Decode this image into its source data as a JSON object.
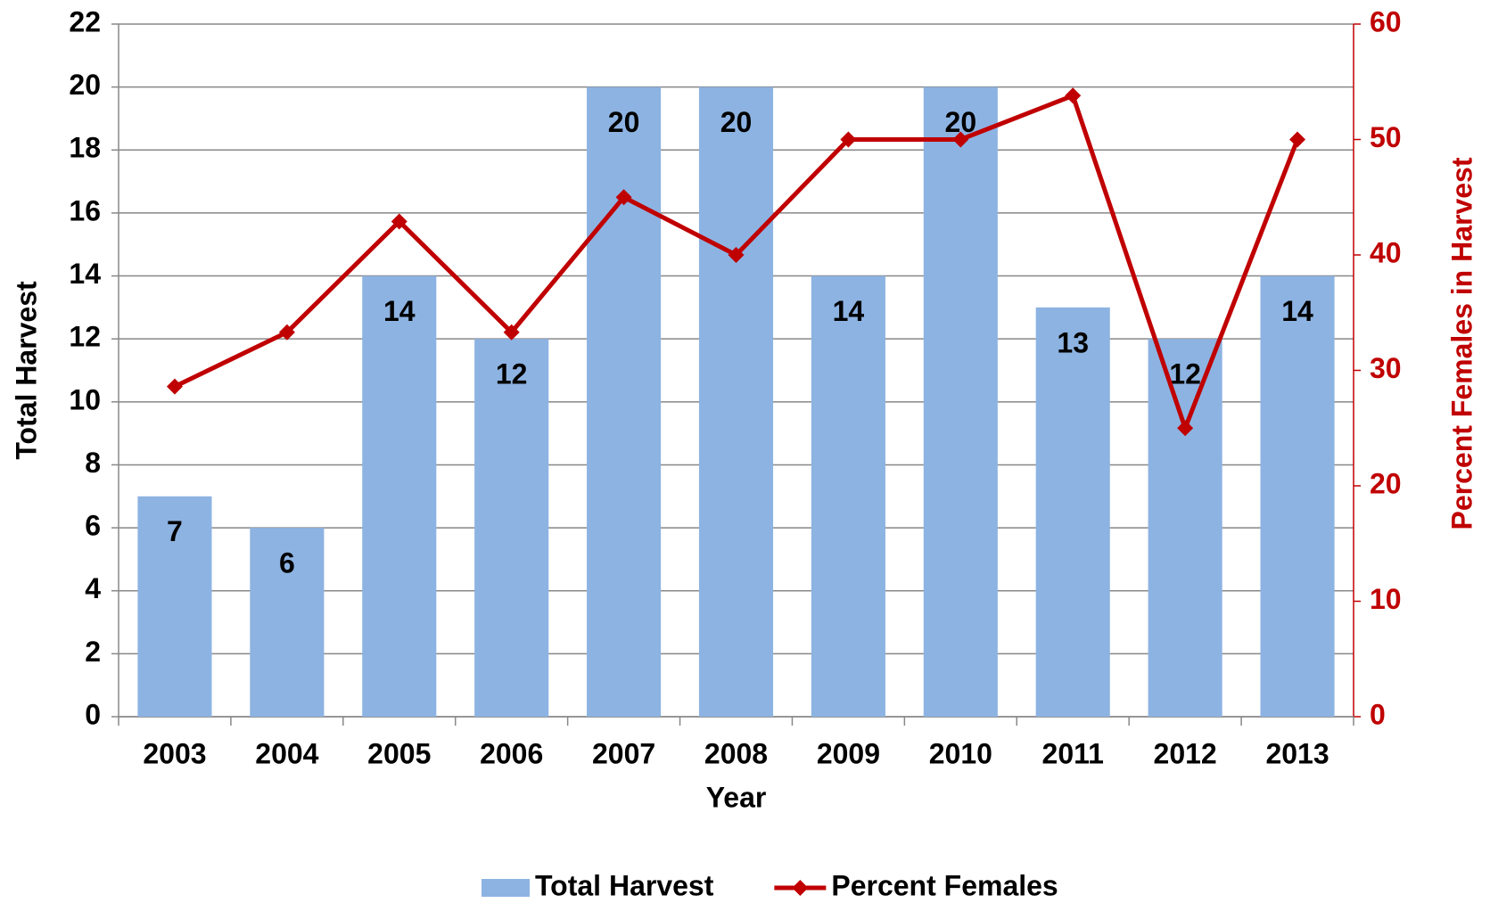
{
  "chart_data": {
    "type": "bar+line",
    "x_label": "Year",
    "y_label": "Total Harvest",
    "y2_label": "Percent Females in Harvest",
    "categories": [
      "2003",
      "2004",
      "2005",
      "2006",
      "2007",
      "2008",
      "2009",
      "2010",
      "2011",
      "2012",
      "2013"
    ],
    "series": [
      {
        "name": "Total Harvest",
        "type": "bar",
        "color": "#8db3e2",
        "values": [
          7,
          6,
          14,
          12,
          20,
          20,
          14,
          20,
          13,
          12,
          14
        ]
      },
      {
        "name": "Percent Females",
        "type": "line",
        "axis": "y2",
        "color": "#c00000",
        "values": [
          28.6,
          33.3,
          42.9,
          33.3,
          45,
          40,
          50,
          50,
          53.8,
          25,
          50
        ]
      }
    ],
    "ylim": [
      0,
      22
    ],
    "yticks": [
      0,
      2,
      4,
      6,
      8,
      10,
      12,
      14,
      16,
      18,
      20,
      22
    ],
    "y2lim": [
      0,
      60
    ],
    "y2ticks": [
      0,
      10,
      20,
      30,
      40,
      50,
      60
    ],
    "grid": true,
    "legend": "bottom"
  }
}
